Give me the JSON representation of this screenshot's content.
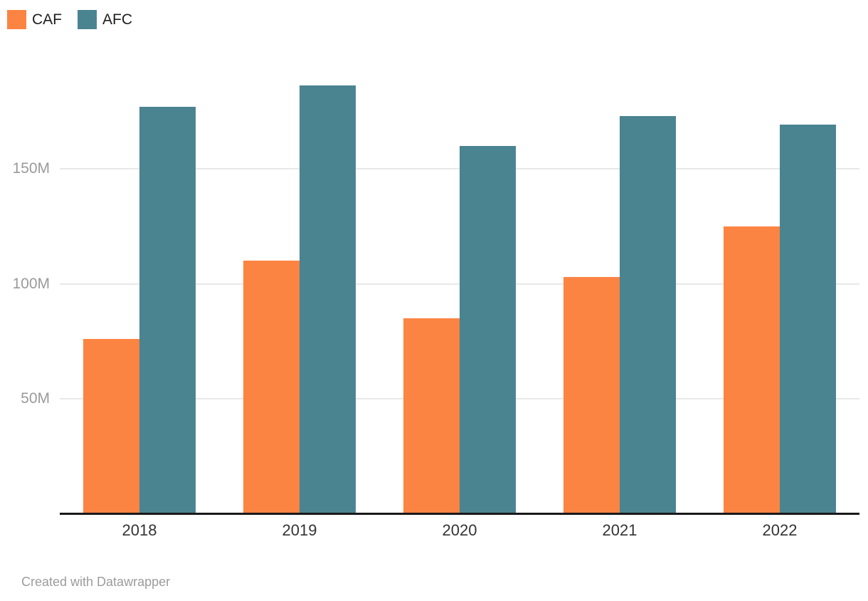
{
  "legend": {
    "items": [
      {
        "label": "CAF",
        "color": "#fc8442"
      },
      {
        "label": "AFC",
        "color": "#4a8491"
      }
    ]
  },
  "chart_data": {
    "type": "bar",
    "categories": [
      "2018",
      "2019",
      "2020",
      "2021",
      "2022"
    ],
    "series": [
      {
        "name": "CAF",
        "color": "#fc8442",
        "values": [
          76,
          110,
          85,
          103,
          125
        ]
      },
      {
        "name": "AFC",
        "color": "#4a8491",
        "values": [
          177,
          186,
          160,
          173,
          169
        ]
      }
    ],
    "unit": "M",
    "yticks": [
      50,
      100,
      150
    ],
    "ytick_labels": [
      "50M",
      "100M",
      "150M"
    ],
    "ylim": [
      0,
      200
    ],
    "grid": "horizontal",
    "legend_position": "top-left"
  },
  "colors": {
    "gridline": "#e8e8e8",
    "axis_line": "#19191b",
    "ytick_text": "#9a9a9a",
    "xtick_text": "#333333"
  },
  "footer": {
    "credit": "Created with Datawrapper"
  }
}
